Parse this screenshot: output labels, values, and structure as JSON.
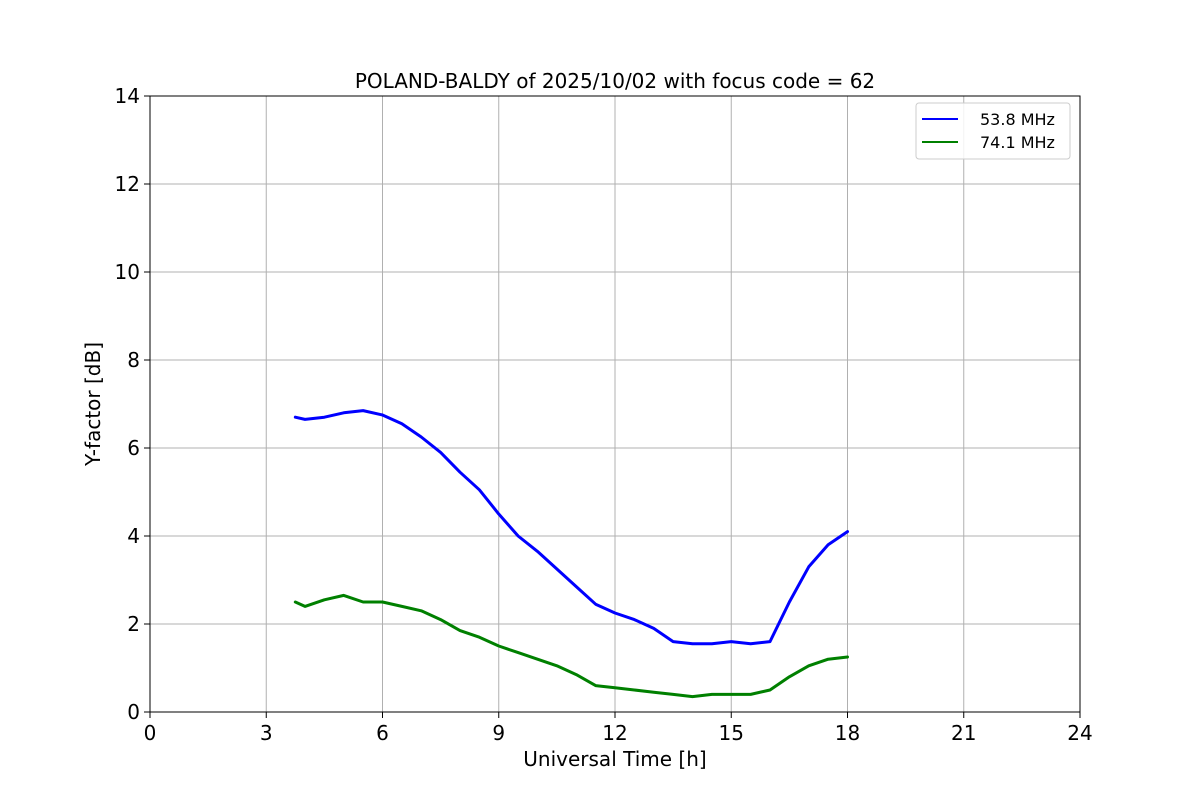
{
  "chart_data": {
    "type": "line",
    "title": "POLAND-BALDY of 2025/10/02 with focus code = 62",
    "xlabel": "Universal Time [h]",
    "ylabel": "Y-factor [dB]",
    "xlim": [
      0,
      24
    ],
    "ylim": [
      0,
      14
    ],
    "xticks": [
      0,
      3,
      6,
      9,
      12,
      15,
      18,
      21,
      24
    ],
    "yticks": [
      0,
      2,
      4,
      6,
      8,
      10,
      12,
      14
    ],
    "grid": true,
    "legend_position": "top-right",
    "series": [
      {
        "name": "53.8 MHz",
        "color": "#0000ff",
        "x": [
          3.75,
          4.0,
          4.5,
          5.0,
          5.5,
          6.0,
          6.5,
          7.0,
          7.5,
          8.0,
          8.5,
          9.0,
          9.5,
          10.0,
          10.5,
          11.0,
          11.5,
          12.0,
          12.5,
          13.0,
          13.5,
          14.0,
          14.5,
          15.0,
          15.5,
          16.0,
          16.5,
          17.0,
          17.5,
          18.0
        ],
        "y": [
          6.7,
          6.65,
          6.7,
          6.8,
          6.85,
          6.75,
          6.55,
          6.25,
          5.9,
          5.45,
          5.05,
          4.5,
          4.0,
          3.65,
          3.25,
          2.85,
          2.45,
          2.25,
          2.1,
          1.9,
          1.6,
          1.55,
          1.55,
          1.6,
          1.55,
          1.6,
          2.5,
          3.3,
          3.8,
          4.1
        ]
      },
      {
        "name": "74.1 MHz",
        "color": "#008000",
        "x": [
          3.75,
          4.0,
          4.5,
          5.0,
          5.5,
          6.0,
          6.5,
          7.0,
          7.5,
          8.0,
          8.5,
          9.0,
          9.5,
          10.0,
          10.5,
          11.0,
          11.5,
          12.0,
          12.5,
          13.0,
          13.5,
          14.0,
          14.5,
          15.0,
          15.5,
          16.0,
          16.5,
          17.0,
          17.5,
          18.0
        ],
        "y": [
          2.5,
          2.4,
          2.55,
          2.65,
          2.5,
          2.5,
          2.4,
          2.3,
          2.1,
          1.85,
          1.7,
          1.5,
          1.35,
          1.2,
          1.05,
          0.85,
          0.6,
          0.55,
          0.5,
          0.45,
          0.4,
          0.35,
          0.4,
          0.4,
          0.4,
          0.5,
          0.8,
          1.05,
          1.2,
          1.25
        ]
      }
    ]
  }
}
